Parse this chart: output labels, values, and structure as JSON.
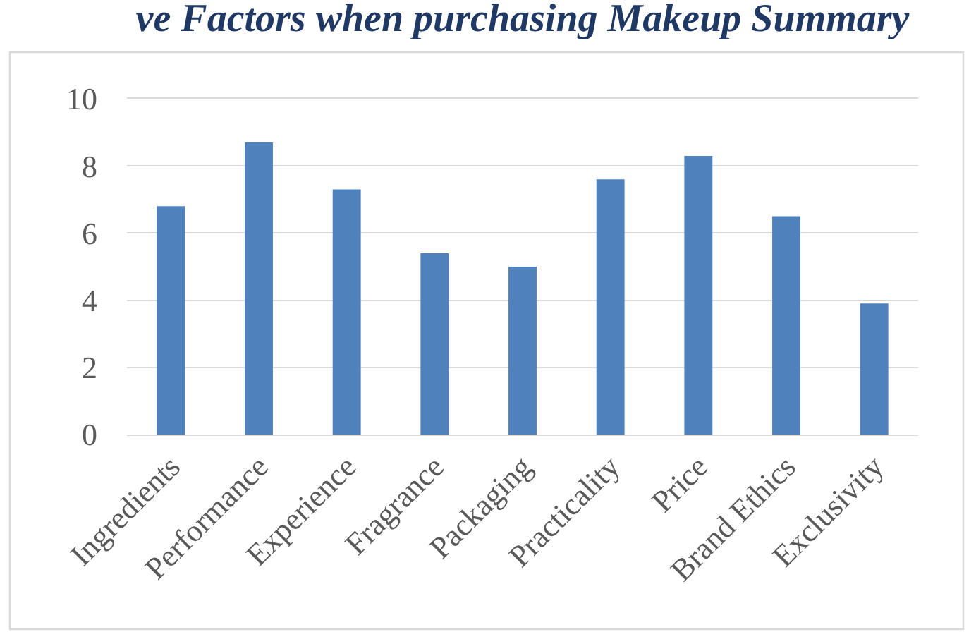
{
  "chart_data": {
    "type": "bar",
    "title": "ve Factors when purchasing Makeup Summary",
    "categories": [
      "Ingredients",
      "Performance",
      "Experience",
      "Fragrance",
      "Packaging",
      "Practicality",
      "Price",
      "Brand Ethics",
      "Exclusivity"
    ],
    "values": [
      6.8,
      8.7,
      7.3,
      5.4,
      5.0,
      7.6,
      8.3,
      6.5,
      3.9
    ],
    "color": "#4f81bd",
    "ylim": [
      0,
      10
    ],
    "yticks": [
      0,
      2,
      4,
      6,
      8,
      10
    ],
    "grid": "y"
  }
}
